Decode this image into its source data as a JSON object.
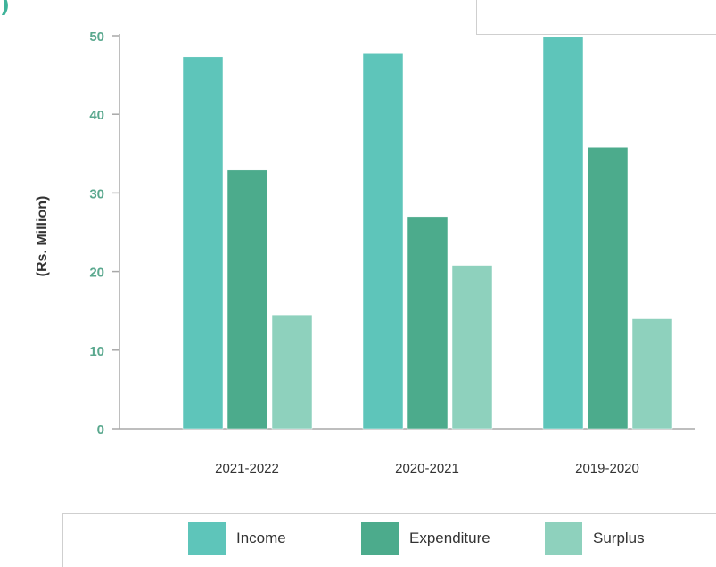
{
  "corner_text": ")",
  "chart_data": {
    "type": "bar",
    "categories": [
      "2021-2022",
      "2020-2021",
      "2019-2020"
    ],
    "series": [
      {
        "name": "Income",
        "values": [
          47.3,
          47.7,
          49.8
        ],
        "color": "#5ec5ba"
      },
      {
        "name": "Expenditure",
        "values": [
          32.9,
          27.0,
          35.8
        ],
        "color": "#4cab8c"
      },
      {
        "name": "Surplus",
        "values": [
          14.5,
          20.8,
          14.0
        ],
        "color": "#8ed1bd"
      }
    ],
    "ylabel": "(Rs. Million)",
    "ylim": [
      0,
      50
    ],
    "yticks": [
      "0",
      "10",
      "20",
      "30",
      "40",
      "50"
    ],
    "grid": false,
    "legend_position": "bottom"
  }
}
